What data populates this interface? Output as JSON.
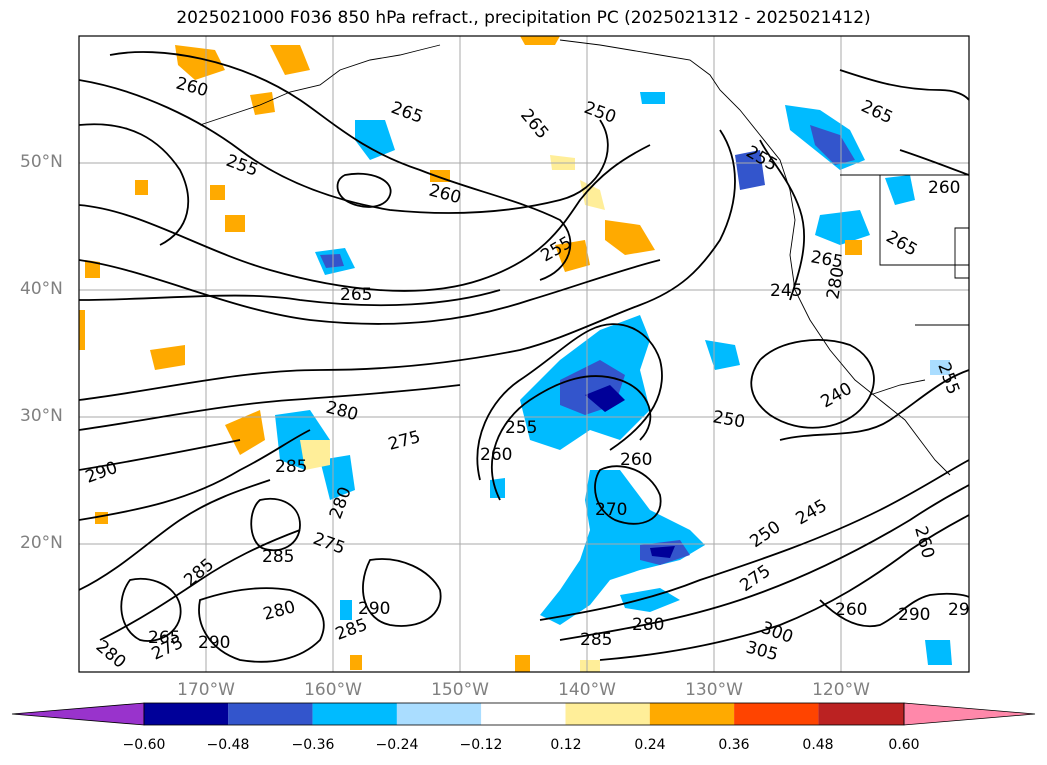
{
  "title": "2025021000 F036 850 hPa refract., precipitation PC (2025021312 - 2025021412)",
  "latitude_labels": [
    "50°N",
    "40°N",
    "30°N",
    "20°N"
  ],
  "longitude_labels": [
    "170°W",
    "160°W",
    "150°W",
    "140°W",
    "130°W",
    "120°W"
  ],
  "contour_labels": [
    "260",
    "265",
    "255",
    "260",
    "265",
    "265",
    "255",
    "250",
    "255",
    "265",
    "265",
    "260",
    "265",
    "280",
    "275",
    "290",
    "285",
    "280",
    "275",
    "285",
    "285",
    "280",
    "290",
    "285",
    "265",
    "275",
    "290",
    "280",
    "255",
    "260",
    "270",
    "260",
    "250",
    "245",
    "240",
    "255",
    "245",
    "250",
    "260",
    "275",
    "300",
    "305",
    "290",
    "260",
    "29",
    "280",
    "285",
    "280"
  ],
  "colorbar": {
    "ticks": [
      "−0.60",
      "−0.48",
      "−0.36",
      "−0.24",
      "−0.12",
      "0.12",
      "0.24",
      "0.36",
      "0.48",
      "0.60"
    ],
    "colors": [
      "#9933cc",
      "#000099",
      "#3355cc",
      "#00bbff",
      "#aaddff",
      "#ffffff",
      "#ffee99",
      "#ffaa00",
      "#ff4400",
      "#bb2222",
      "#ff88aa"
    ]
  }
}
